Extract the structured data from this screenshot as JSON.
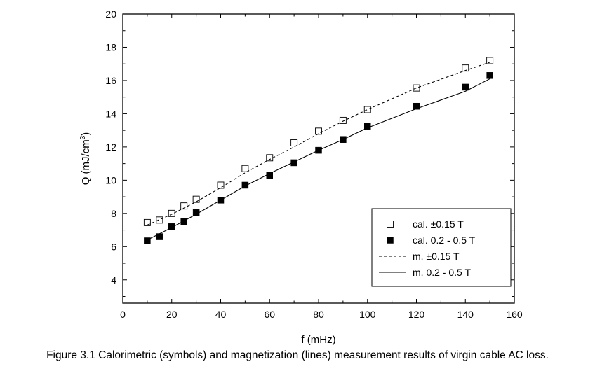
{
  "chart_data": {
    "type": "scatter",
    "xlabel": "f (mHz)",
    "ylabel_main": "Q (mJ/cm",
    "ylabel_sup": "3",
    "ylabel_end": ")",
    "xlim": [
      0,
      160
    ],
    "ylim": [
      2.6,
      20
    ],
    "xticks": [
      0,
      20,
      40,
      60,
      80,
      100,
      120,
      140,
      160
    ],
    "yticks": [
      4,
      6,
      8,
      10,
      12,
      14,
      16,
      18,
      20
    ],
    "grid": false,
    "legend_position": "bottom-right",
    "series": [
      {
        "name": "cal. ±0.15 T",
        "kind": "points",
        "marker": "open-square",
        "x": [
          10,
          15,
          20,
          25,
          30,
          40,
          50,
          60,
          70,
          80,
          90,
          100,
          120,
          140,
          150
        ],
        "y": [
          7.45,
          7.6,
          8.0,
          8.45,
          8.85,
          9.7,
          10.7,
          11.35,
          12.25,
          12.95,
          13.6,
          14.25,
          15.55,
          16.75,
          17.2
        ]
      },
      {
        "name": "cal. 0.2 - 0.5 T",
        "kind": "points",
        "marker": "filled-square",
        "x": [
          10,
          15,
          20,
          25,
          30,
          40,
          50,
          60,
          70,
          80,
          90,
          100,
          120,
          140,
          150
        ],
        "y": [
          6.35,
          6.6,
          7.2,
          7.5,
          8.05,
          8.8,
          9.7,
          10.3,
          11.05,
          11.8,
          12.45,
          13.25,
          14.45,
          15.6,
          16.3
        ]
      },
      {
        "name": "m. ±0.15 T",
        "kind": "line",
        "style": "dashed",
        "x": [
          10,
          20,
          30,
          40,
          50,
          60,
          70,
          80,
          90,
          100,
          120,
          140,
          150
        ],
        "y": [
          7.3,
          7.95,
          8.7,
          9.55,
          10.45,
          11.25,
          12.0,
          12.8,
          13.55,
          14.25,
          15.55,
          16.6,
          17.1
        ]
      },
      {
        "name": "m. 0.2 - 0.5 T",
        "kind": "line",
        "style": "solid",
        "x": [
          10,
          20,
          30,
          40,
          50,
          60,
          70,
          80,
          90,
          100,
          120,
          140,
          150
        ],
        "y": [
          6.4,
          7.15,
          7.95,
          8.8,
          9.65,
          10.4,
          11.1,
          11.8,
          12.45,
          13.15,
          14.3,
          15.35,
          16.1
        ]
      }
    ]
  },
  "caption": "Figure 3.1 Calorimetric (symbols) and magnetization (lines) measurement results of virgin cable AC loss."
}
